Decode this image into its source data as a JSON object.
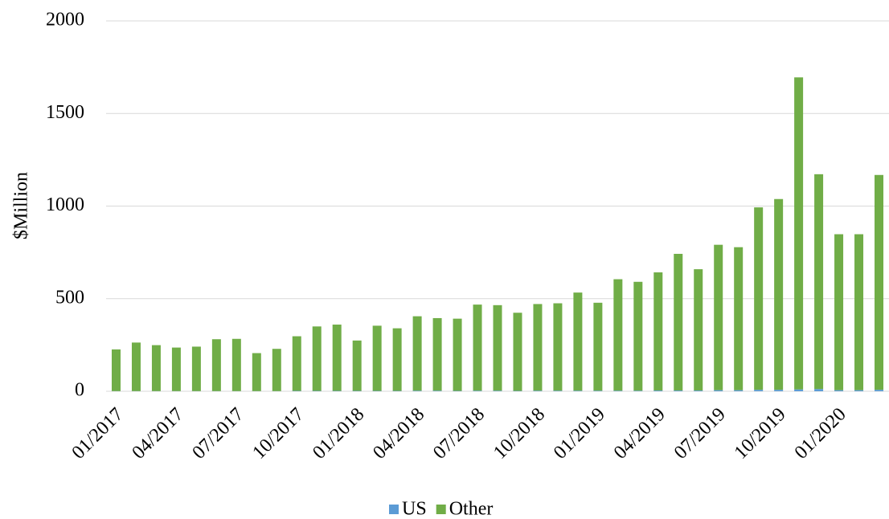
{
  "chart_data": {
    "type": "stacked_bar",
    "y_label": "$Million",
    "categories": [
      "01/2017",
      null,
      null,
      "04/2017",
      null,
      null,
      "07/2017",
      null,
      null,
      "10/2017",
      null,
      null,
      "01/2018",
      null,
      null,
      "04/2018",
      null,
      null,
      "07/2018",
      null,
      null,
      "10/2018",
      null,
      null,
      "01/2019",
      null,
      null,
      "04/2019",
      null,
      null,
      "07/2019",
      null,
      null,
      "10/2019",
      null,
      null,
      "01/2020",
      null,
      null
    ],
    "series": [
      {
        "name": "US",
        "color": "#5b9bd5",
        "values": [
          1,
          1,
          1,
          1,
          1,
          1,
          1,
          1,
          1,
          2,
          2,
          2,
          2,
          2,
          2,
          3,
          3,
          2,
          3,
          3,
          2,
          3,
          3,
          3,
          3,
          3,
          3,
          4,
          4,
          4,
          6,
          6,
          8,
          8,
          10,
          12,
          6,
          6,
          8
        ]
      },
      {
        "name": "Other",
        "color": "#70ad47",
        "values": [
          225,
          262,
          248,
          235,
          240,
          280,
          282,
          205,
          228,
          295,
          348,
          358,
          272,
          352,
          338,
          402,
          392,
          390,
          465,
          462,
          422,
          468,
          472,
          530,
          475,
          602,
          588,
          638,
          738,
          655,
          785,
          772,
          985,
          1030,
          1685,
          1160,
          842,
          842,
          1160
        ]
      }
    ],
    "ylim": [
      0,
      2000
    ],
    "yticks": [
      0,
      500,
      1000,
      1500,
      2000
    ],
    "grid": true
  }
}
